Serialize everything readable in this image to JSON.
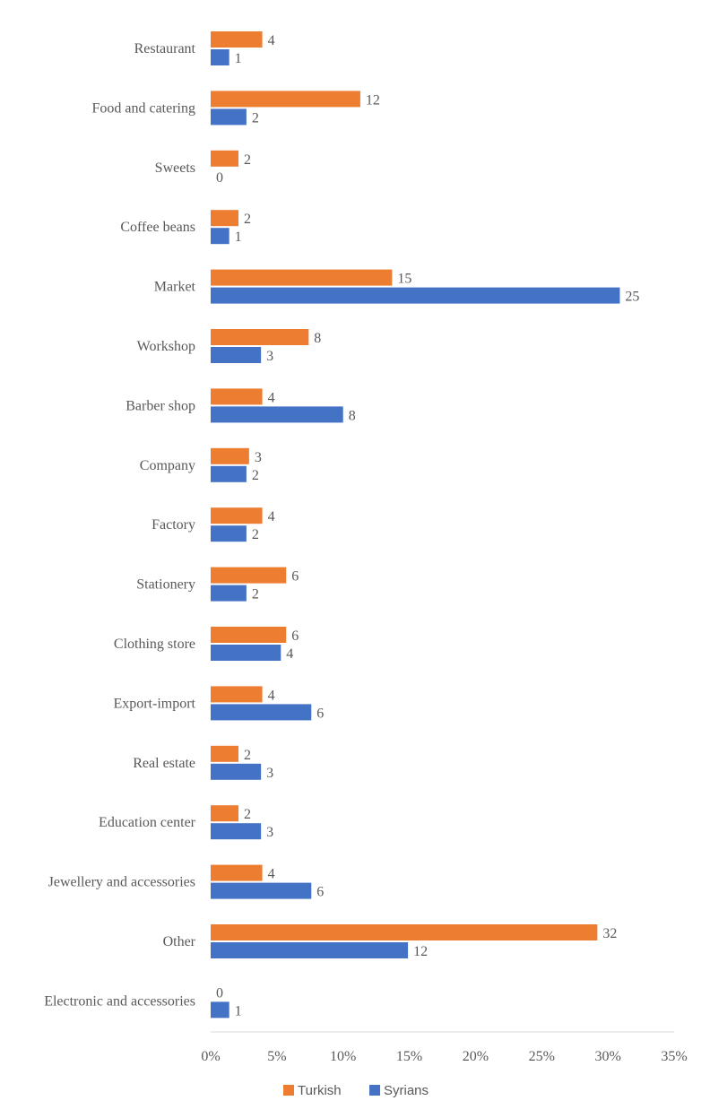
{
  "chart_data": {
    "type": "bar",
    "orientation": "horizontal",
    "categories": [
      "Restaurant",
      "Food and catering",
      "Sweets",
      "Coffee beans",
      "Market",
      "Workshop",
      "Barber shop",
      "Company",
      "Factory",
      "Stationery",
      "Clothing store",
      "Export-import",
      "Real estate",
      "Education center",
      "Jewellery and accessories",
      "Other",
      "Electronic and accessories"
    ],
    "series": [
      {
        "name": "Turkish",
        "color": "#ED7D31",
        "labels": [
          4,
          12,
          2,
          2,
          15,
          8,
          4,
          3,
          4,
          6,
          6,
          4,
          2,
          2,
          4,
          32,
          0
        ],
        "values": [
          3.9,
          11.3,
          2.1,
          2.1,
          13.7,
          7.4,
          3.9,
          2.9,
          3.9,
          5.7,
          5.7,
          3.9,
          2.1,
          2.1,
          3.9,
          29.2,
          0
        ]
      },
      {
        "name": "Syrians",
        "color": "#4472C4",
        "labels": [
          1,
          2,
          0,
          1,
          25,
          3,
          8,
          2,
          2,
          2,
          4,
          6,
          3,
          3,
          6,
          12,
          1
        ],
        "values": [
          1.4,
          2.7,
          0,
          1.4,
          30.9,
          3.8,
          10.0,
          2.7,
          2.7,
          2.7,
          5.3,
          7.6,
          3.8,
          3.8,
          7.6,
          14.9,
          1.4
        ]
      }
    ],
    "x_ticks": [
      "0%",
      "5%",
      "10%",
      "15%",
      "20%",
      "25%",
      "30%",
      "35%"
    ],
    "xlim": [
      0,
      35
    ],
    "legend": "bottom",
    "grid": false
  }
}
